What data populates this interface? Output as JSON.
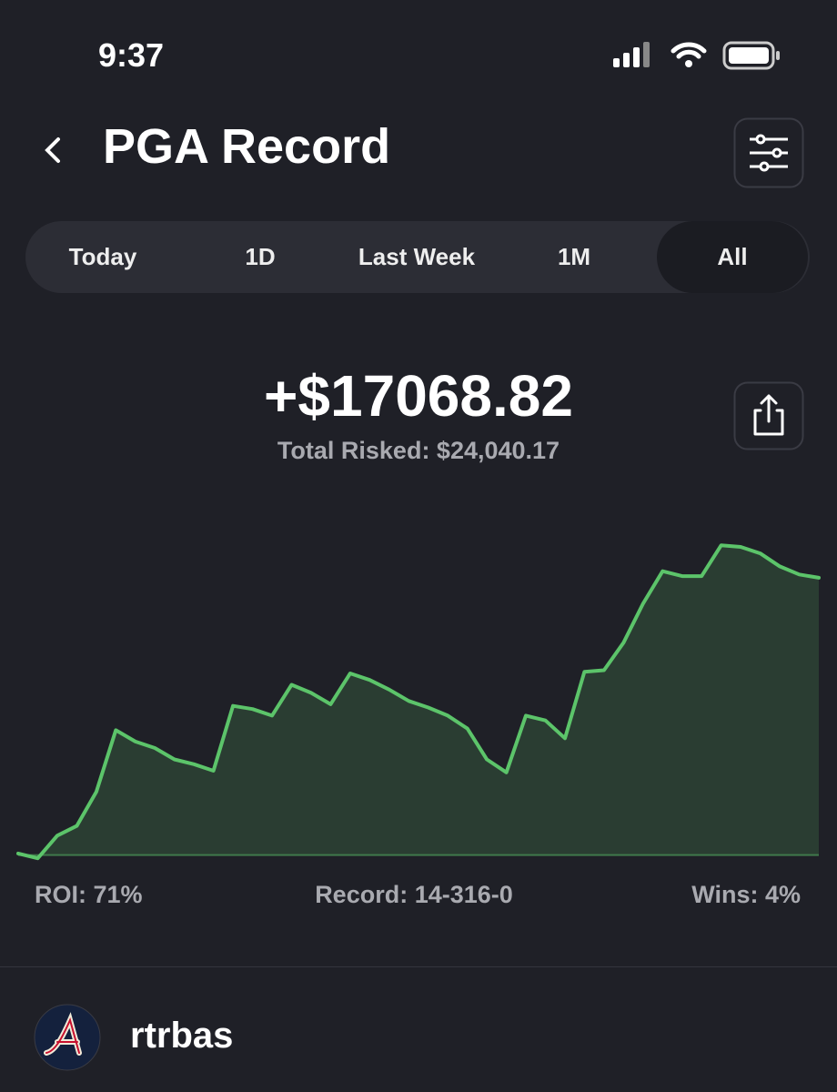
{
  "status_bar": {
    "time": "9:37"
  },
  "header": {
    "title": "PGA Record"
  },
  "tabs": {
    "items": [
      "Today",
      "1D",
      "Last Week",
      "1M",
      "All"
    ],
    "selected": 4
  },
  "summary": {
    "amount": "+$17068.82",
    "total_risked": "Total Risked: $24,040.17"
  },
  "chart_data": {
    "type": "area",
    "color": "#5cc46a",
    "ylim": [
      -300,
      21300
    ],
    "values": [
      100,
      -200,
      1200,
      1800,
      3900,
      7700,
      7000,
      6600,
      5900,
      5600,
      5200,
      9200,
      9000,
      8600,
      10500,
      10000,
      9300,
      11200,
      10800,
      10200,
      9500,
      9100,
      8600,
      7800,
      5900,
      5100,
      8600,
      8300,
      7200,
      11300,
      11400,
      13100,
      15500,
      17500,
      17200,
      17200,
      19100,
      19000,
      18600,
      17800,
      17300,
      17100
    ]
  },
  "stats": [
    "ROI: 71%",
    "Record: 14-316-0",
    "Wins: 4%"
  ],
  "profile": {
    "username": "rtrbas"
  }
}
